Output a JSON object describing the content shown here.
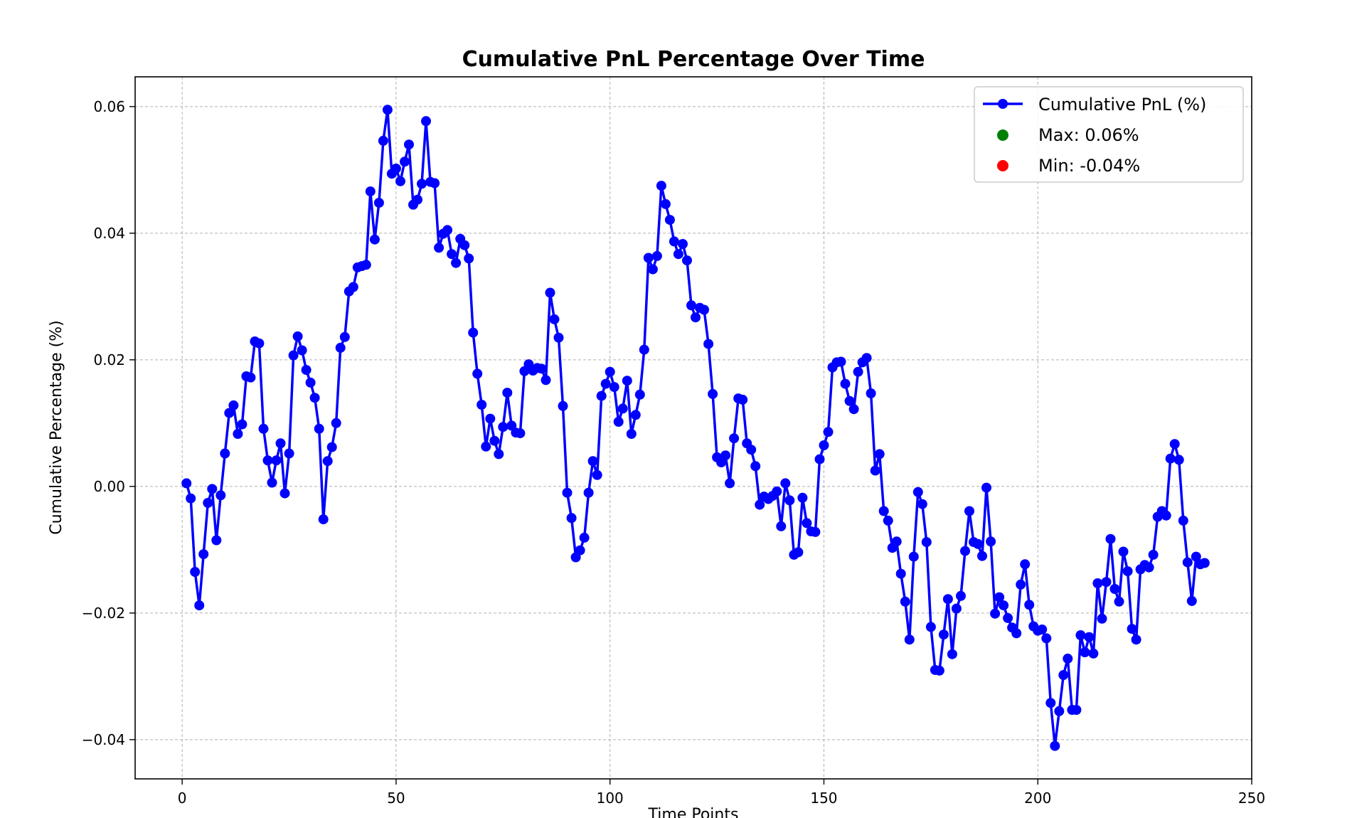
{
  "chart_data": {
    "type": "line",
    "title": "Cumulative PnL Percentage Over Time",
    "xlabel": "Time Points",
    "ylabel": "Cumulative Percentage (%)",
    "xlim": [
      -11,
      250
    ],
    "ylim": [
      -0.0462,
      0.0647
    ],
    "xticks": [
      0,
      50,
      100,
      150,
      200,
      250
    ],
    "yticks": [
      -0.04,
      -0.02,
      0.0,
      0.02,
      0.04,
      0.06
    ],
    "xtick_labels": [
      "0",
      "50",
      "100",
      "150",
      "200",
      "250"
    ],
    "ytick_labels": [
      "−0.04",
      "−0.02",
      "0.00",
      "0.02",
      "0.04",
      "0.06"
    ],
    "grid": true,
    "legend_position": "top-right",
    "legend": {
      "series_label": "Cumulative PnL (%)",
      "max_label": "Max: 0.06%",
      "min_label": "Min: -0.04%"
    },
    "colors": {
      "series": "#0000ff",
      "max": "#008000",
      "min": "#ff0000"
    },
    "series": [
      {
        "name": "Cumulative PnL (%)",
        "x": [
          1,
          2,
          3,
          4,
          5,
          6,
          7,
          8,
          9,
          10,
          11,
          12,
          13,
          14,
          15,
          16,
          17,
          18,
          19,
          20,
          21,
          22,
          23,
          24,
          25,
          26,
          27,
          28,
          29,
          30,
          31,
          32,
          33,
          34,
          35,
          36,
          37,
          38,
          39,
          40,
          41,
          42,
          43,
          44,
          45,
          46,
          47,
          48,
          49,
          50,
          51,
          52,
          53,
          54,
          55,
          56,
          57,
          58,
          59,
          60,
          61,
          62,
          63,
          64,
          65,
          66,
          67,
          68,
          69,
          70,
          71,
          72,
          73,
          74,
          75,
          76,
          77,
          78,
          79,
          80,
          81,
          82,
          83,
          84,
          85,
          86,
          87,
          88,
          89,
          90,
          91,
          92,
          93,
          94,
          95,
          96,
          97,
          98,
          99,
          100,
          101,
          102,
          103,
          104,
          105,
          106,
          107,
          108,
          109,
          110,
          111,
          112,
          113,
          114,
          115,
          116,
          117,
          118,
          119,
          120,
          121,
          122,
          123,
          124,
          125,
          126,
          127,
          128,
          129,
          130,
          131,
          132,
          133,
          134,
          135,
          136,
          137,
          138,
          139,
          140,
          141,
          142,
          143,
          144,
          145,
          146,
          147,
          148,
          149,
          150,
          151,
          152,
          153,
          154,
          155,
          156,
          157,
          158,
          159,
          160,
          161,
          162,
          163,
          164,
          165,
          166,
          167,
          168,
          169,
          170,
          171,
          172,
          173,
          174,
          175,
          176,
          177,
          178,
          179,
          180,
          181,
          182,
          183,
          184,
          185,
          186,
          187,
          188,
          189,
          190,
          191,
          192,
          193,
          194,
          195,
          196,
          197,
          198,
          199,
          200,
          201,
          202,
          203,
          204,
          205,
          206,
          207,
          208,
          209,
          210,
          211,
          212,
          213,
          214,
          215,
          216,
          217,
          218,
          219,
          220,
          221,
          222,
          223,
          224,
          225,
          226,
          227,
          228,
          229,
          230,
          231,
          232,
          233,
          234,
          235,
          236,
          237,
          238,
          239
        ],
        "y": [
          0.0005,
          -0.0019,
          -0.0135,
          -0.0188,
          -0.0107,
          -0.0026,
          -0.0004,
          -0.0085,
          -0.0014,
          0.0052,
          0.0116,
          0.0128,
          0.0083,
          0.0098,
          0.0174,
          0.0172,
          0.0229,
          0.0226,
          0.0091,
          0.0041,
          0.0006,
          0.0041,
          0.0068,
          -0.0011,
          0.0052,
          0.0207,
          0.0237,
          0.0215,
          0.0184,
          0.0164,
          0.014,
          0.0091,
          -0.0052,
          0.004,
          0.0062,
          0.01,
          0.0219,
          0.0236,
          0.0308,
          0.0315,
          0.0346,
          0.0348,
          0.035,
          0.0466,
          0.039,
          0.0448,
          0.0546,
          0.0595,
          0.0494,
          0.0502,
          0.0482,
          0.0513,
          0.054,
          0.0445,
          0.0453,
          0.0478,
          0.0577,
          0.0481,
          0.0479,
          0.0377,
          0.0399,
          0.0405,
          0.0367,
          0.0353,
          0.0391,
          0.0381,
          0.036,
          0.0243,
          0.0178,
          0.0129,
          0.0063,
          0.0107,
          0.0072,
          0.0051,
          0.0094,
          0.0148,
          0.0096,
          0.0085,
          0.0084,
          0.0182,
          0.0193,
          0.0183,
          0.0187,
          0.0186,
          0.0168,
          0.0306,
          0.0264,
          0.0235,
          0.0127,
          -0.001,
          -0.005,
          -0.0112,
          -0.0101,
          -0.0081,
          -0.001,
          0.004,
          0.0018,
          0.0143,
          0.0162,
          0.0181,
          0.0157,
          0.0102,
          0.0123,
          0.0167,
          0.0083,
          0.0113,
          0.0145,
          0.0216,
          0.0361,
          0.0343,
          0.0364,
          0.0475,
          0.0446,
          0.0421,
          0.0387,
          0.0367,
          0.0383,
          0.0357,
          0.0286,
          0.0267,
          0.0282,
          0.0279,
          0.0225,
          0.0146,
          0.0046,
          0.0038,
          0.0049,
          0.0005,
          0.0076,
          0.0139,
          0.0137,
          0.0068,
          0.0058,
          0.0032,
          -0.0029,
          -0.0016,
          -0.002,
          -0.0015,
          -0.0008,
          -0.0063,
          0.0005,
          -0.0022,
          -0.0108,
          -0.0104,
          -0.0018,
          -0.0058,
          -0.0071,
          -0.0072,
          0.0043,
          0.0065,
          0.0086,
          0.0188,
          0.0196,
          0.0197,
          0.0162,
          0.0135,
          0.0122,
          0.0181,
          0.0196,
          0.0203,
          0.0147,
          0.0025,
          0.0051,
          -0.0039,
          -0.0054,
          -0.0097,
          -0.0087,
          -0.0138,
          -0.0182,
          -0.0242,
          -0.0111,
          -0.0009,
          -0.0028,
          -0.0088,
          -0.0222,
          -0.029,
          -0.0291,
          -0.0234,
          -0.0178,
          -0.0265,
          -0.0193,
          -0.0173,
          -0.0102,
          -0.0039,
          -0.0088,
          -0.0091,
          -0.011,
          -0.0002,
          -0.0087,
          -0.0201,
          -0.0175,
          -0.0188,
          -0.0208,
          -0.0223,
          -0.0232,
          -0.0155,
          -0.0123,
          -0.0187,
          -0.0221,
          -0.0228,
          -0.0226,
          -0.024,
          -0.0342,
          -0.041,
          -0.0355,
          -0.0298,
          -0.0272,
          -0.0353,
          -0.0353,
          -0.0235,
          -0.0262,
          -0.0238,
          -0.0264,
          -0.0153,
          -0.0209,
          -0.0151,
          -0.0083,
          -0.0162,
          -0.0182,
          -0.0103,
          -0.0134,
          -0.0225,
          -0.0242,
          -0.0131,
          -0.0124,
          -0.0128,
          -0.0108,
          -0.0048,
          -0.0039,
          -0.0046,
          0.0044,
          0.0067,
          0.0042,
          -0.0054,
          -0.012,
          -0.0181,
          -0.0111,
          -0.0123,
          -0.0121
        ]
      }
    ]
  }
}
